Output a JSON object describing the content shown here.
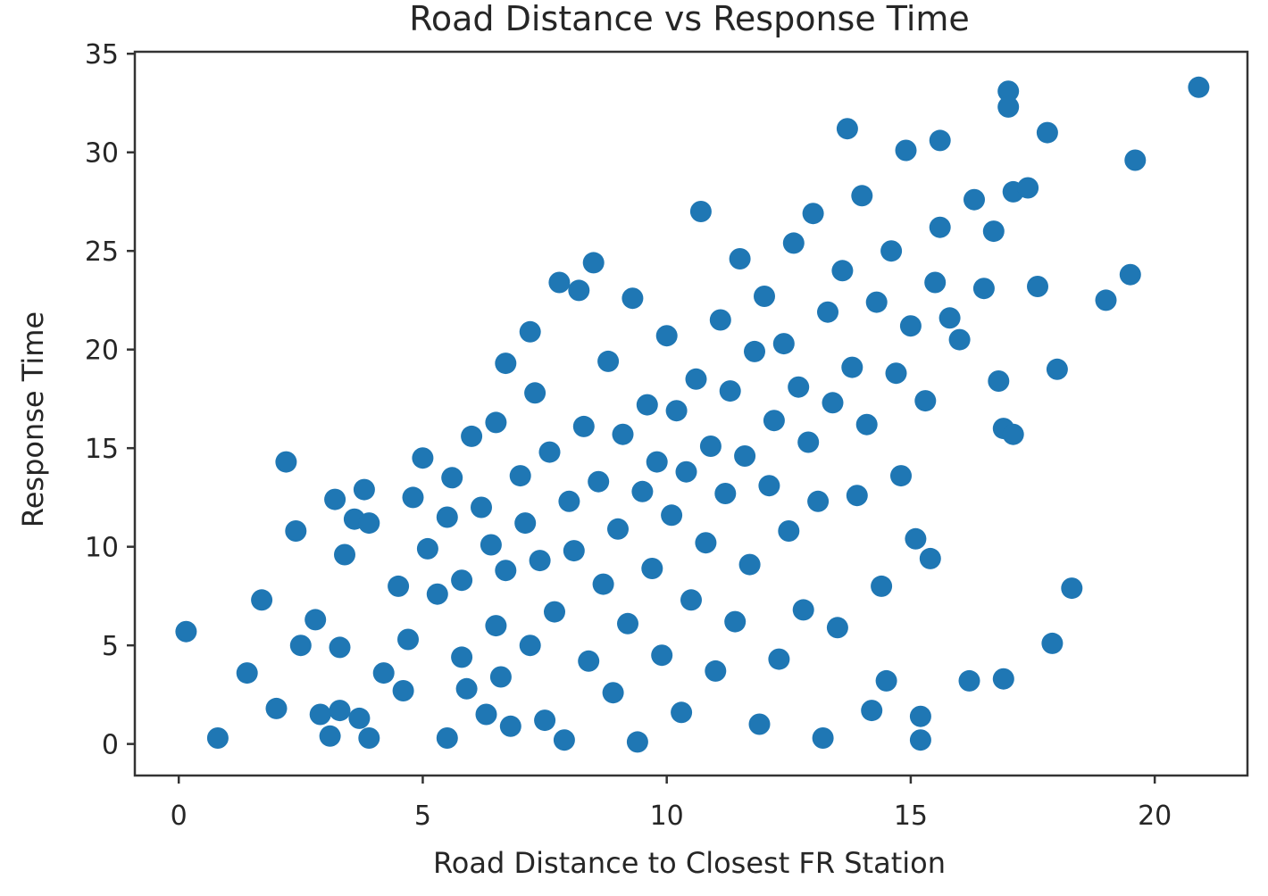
{
  "chart_data": {
    "type": "scatter",
    "title": "Road Distance vs Response Time",
    "xlabel": "Road Distance to Closest FR Station",
    "ylabel": "Response Time",
    "xlim": [
      -0.9,
      21.9
    ],
    "ylim": [
      -1.6,
      35.1
    ],
    "xticks": [
      0,
      5,
      10,
      15,
      20
    ],
    "xtick_labels": [
      "0",
      "5",
      "10",
      "15",
      "20"
    ],
    "yticks": [
      0,
      5,
      10,
      15,
      20,
      25,
      30,
      35
    ],
    "ytick_labels": [
      "0",
      "5",
      "10",
      "15",
      "20",
      "25",
      "30",
      "35"
    ],
    "grid": false,
    "legend": "none",
    "marker_color": "#1f77b4",
    "series": [
      {
        "points": [
          [
            0.15,
            5.7
          ],
          [
            0.8,
            0.3
          ],
          [
            1.4,
            3.6
          ],
          [
            1.7,
            7.3
          ],
          [
            2.0,
            1.8
          ],
          [
            2.2,
            14.3
          ],
          [
            2.4,
            10.8
          ],
          [
            2.5,
            5.0
          ],
          [
            2.8,
            6.3
          ],
          [
            2.9,
            1.5
          ],
          [
            3.1,
            0.4
          ],
          [
            3.3,
            1.7
          ],
          [
            3.2,
            12.4
          ],
          [
            3.3,
            4.9
          ],
          [
            3.4,
            9.6
          ],
          [
            3.6,
            11.4
          ],
          [
            3.7,
            1.3
          ],
          [
            3.8,
            12.9
          ],
          [
            3.9,
            0.3
          ],
          [
            3.9,
            11.2
          ],
          [
            4.2,
            3.6
          ],
          [
            4.5,
            8.0
          ],
          [
            4.6,
            2.7
          ],
          [
            4.7,
            5.3
          ],
          [
            4.8,
            12.5
          ],
          [
            5.0,
            14.5
          ],
          [
            5.1,
            9.9
          ],
          [
            5.3,
            7.6
          ],
          [
            5.5,
            0.3
          ],
          [
            5.5,
            11.5
          ],
          [
            5.6,
            13.5
          ],
          [
            5.8,
            8.3
          ],
          [
            5.8,
            4.4
          ],
          [
            5.9,
            2.8
          ],
          [
            6.0,
            15.6
          ],
          [
            6.2,
            12.0
          ],
          [
            6.4,
            10.1
          ],
          [
            6.3,
            1.5
          ],
          [
            6.5,
            6.0
          ],
          [
            6.6,
            3.4
          ],
          [
            6.5,
            16.3
          ],
          [
            6.7,
            8.8
          ],
          [
            6.7,
            19.3
          ],
          [
            6.8,
            0.9
          ],
          [
            7.0,
            13.6
          ],
          [
            7.1,
            11.2
          ],
          [
            7.2,
            5.0
          ],
          [
            7.2,
            20.9
          ],
          [
            7.3,
            17.8
          ],
          [
            7.4,
            9.3
          ],
          [
            7.5,
            1.2
          ],
          [
            7.6,
            14.8
          ],
          [
            7.7,
            6.7
          ],
          [
            7.8,
            23.4
          ],
          [
            7.9,
            0.2
          ],
          [
            8.0,
            12.3
          ],
          [
            8.1,
            9.8
          ],
          [
            8.2,
            23.0
          ],
          [
            8.3,
            16.1
          ],
          [
            8.4,
            4.2
          ],
          [
            8.5,
            24.4
          ],
          [
            8.6,
            13.3
          ],
          [
            8.7,
            8.1
          ],
          [
            8.8,
            19.4
          ],
          [
            8.9,
            2.6
          ],
          [
            9.0,
            10.9
          ],
          [
            9.1,
            15.7
          ],
          [
            9.2,
            6.1
          ],
          [
            9.3,
            22.6
          ],
          [
            9.4,
            0.1
          ],
          [
            9.5,
            12.8
          ],
          [
            9.6,
            17.2
          ],
          [
            9.7,
            8.9
          ],
          [
            9.8,
            14.3
          ],
          [
            9.9,
            4.5
          ],
          [
            10.0,
            20.7
          ],
          [
            10.1,
            11.6
          ],
          [
            10.2,
            16.9
          ],
          [
            10.3,
            1.6
          ],
          [
            10.4,
            13.8
          ],
          [
            10.5,
            7.3
          ],
          [
            10.6,
            18.5
          ],
          [
            10.7,
            27.0
          ],
          [
            10.8,
            10.2
          ],
          [
            10.9,
            15.1
          ],
          [
            11.0,
            3.7
          ],
          [
            11.1,
            21.5
          ],
          [
            11.2,
            12.7
          ],
          [
            11.3,
            17.9
          ],
          [
            11.4,
            6.2
          ],
          [
            11.5,
            24.6
          ],
          [
            11.6,
            14.6
          ],
          [
            11.7,
            9.1
          ],
          [
            11.8,
            19.9
          ],
          [
            11.9,
            1.0
          ],
          [
            12.0,
            22.7
          ],
          [
            12.1,
            13.1
          ],
          [
            12.2,
            16.4
          ],
          [
            12.3,
            4.3
          ],
          [
            12.4,
            20.3
          ],
          [
            12.5,
            10.8
          ],
          [
            12.6,
            25.4
          ],
          [
            12.7,
            18.1
          ],
          [
            12.8,
            6.8
          ],
          [
            12.9,
            15.3
          ],
          [
            13.0,
            26.9
          ],
          [
            13.1,
            12.3
          ],
          [
            13.2,
            0.3
          ],
          [
            13.3,
            21.9
          ],
          [
            13.4,
            17.3
          ],
          [
            13.5,
            5.9
          ],
          [
            13.6,
            24.0
          ],
          [
            13.7,
            31.2
          ],
          [
            13.8,
            19.1
          ],
          [
            13.9,
            12.6
          ],
          [
            14.0,
            27.8
          ],
          [
            14.1,
            16.2
          ],
          [
            14.2,
            1.7
          ],
          [
            14.3,
            22.4
          ],
          [
            14.4,
            8.0
          ],
          [
            14.5,
            3.2
          ],
          [
            14.6,
            25.0
          ],
          [
            14.7,
            18.8
          ],
          [
            14.8,
            13.6
          ],
          [
            14.9,
            30.1
          ],
          [
            15.0,
            21.2
          ],
          [
            15.1,
            10.4
          ],
          [
            15.2,
            1.4
          ],
          [
            15.2,
            0.2
          ],
          [
            15.3,
            17.4
          ],
          [
            15.4,
            9.4
          ],
          [
            15.5,
            23.4
          ],
          [
            15.6,
            30.6
          ],
          [
            15.6,
            26.2
          ],
          [
            15.8,
            21.6
          ],
          [
            16.0,
            20.5
          ],
          [
            16.2,
            3.2
          ],
          [
            16.3,
            27.6
          ],
          [
            16.5,
            23.1
          ],
          [
            16.7,
            26.0
          ],
          [
            16.8,
            18.4
          ],
          [
            16.9,
            16.0
          ],
          [
            16.9,
            3.3
          ],
          [
            17.0,
            33.1
          ],
          [
            17.0,
            32.3
          ],
          [
            17.1,
            28.0
          ],
          [
            17.1,
            15.7
          ],
          [
            17.4,
            28.2
          ],
          [
            17.6,
            23.2
          ],
          [
            17.8,
            31.0
          ],
          [
            17.9,
            5.1
          ],
          [
            18.0,
            19.0
          ],
          [
            18.3,
            7.9
          ],
          [
            19.0,
            22.5
          ],
          [
            19.5,
            23.8
          ],
          [
            19.6,
            29.6
          ],
          [
            20.9,
            33.3
          ]
        ]
      }
    ]
  }
}
